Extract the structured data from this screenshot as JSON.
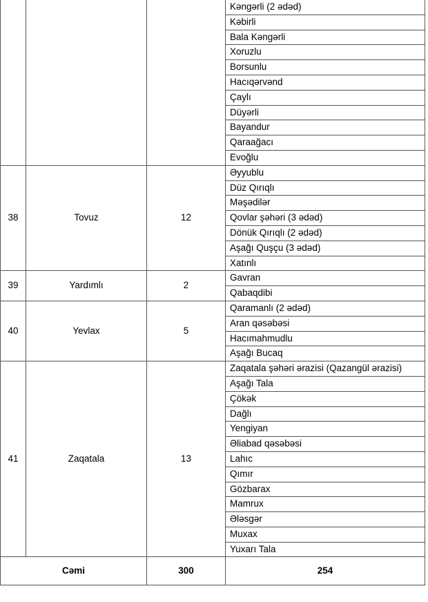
{
  "groups": [
    {
      "no": "",
      "region": "",
      "count": "",
      "villages": [
        "Kəngərli (2 ədəd)",
        "Kəbirli",
        "Bala Kəngərli",
        "Xoruzlu",
        "Borsunlu",
        "Hacıqərvənd",
        "Çaylı",
        "Düyərli",
        "Bayandur",
        "Qaraağacı",
        "Evoğlu"
      ]
    },
    {
      "no": "38",
      "region": "Tovuz",
      "count": "12",
      "villages": [
        "Əyyublu",
        "Düz Qırıqlı",
        "Məşədilər",
        "Qovlar şəhəri (3 ədəd)",
        "Dönük Qırıqlı (2 ədəd)",
        "Aşağı Quşçu (3 ədəd)",
        "Xatınlı"
      ]
    },
    {
      "no": "39",
      "region": "Yardımlı",
      "count": "2",
      "villages": [
        "Gavran",
        "Qabaqdibi"
      ]
    },
    {
      "no": "40",
      "region": "Yevlax",
      "count": "5",
      "villages": [
        "Qaramanlı  (2 ədəd)",
        "Aran qəsəbəsi",
        "Hacımahmudlu",
        "Aşağı Bucaq"
      ]
    },
    {
      "no": "41",
      "region": "Zaqatala",
      "count": "13",
      "villages": [
        "Zaqatala şəhəri ərazisi (Qazangül ərazisi)",
        "Aşağı Tala",
        "Çökək",
        "Dağlı",
        "Yengiyan",
        "Əliabad qəsəbəsi",
        "Lahıc",
        "Qımır",
        "Gözbarax",
        "Mamrux",
        "Ələsgər",
        "Muxax",
        "Yuxarı Tala"
      ]
    }
  ],
  "total": {
    "label": "Cəmi",
    "count": "300",
    "villages": "254"
  }
}
